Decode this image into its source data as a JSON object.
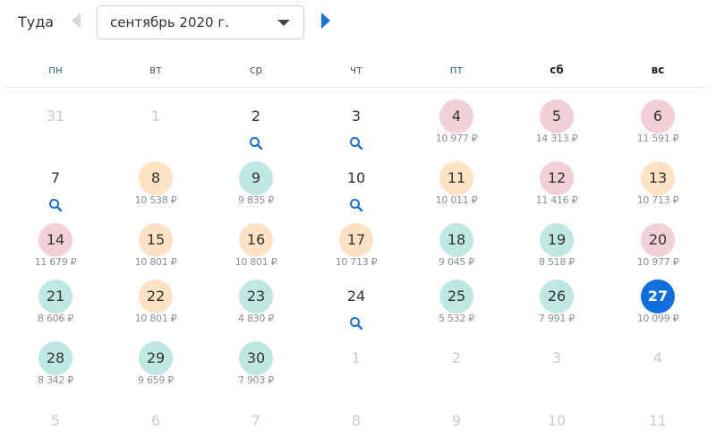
{
  "header": {
    "direction_label": "Туда",
    "month_select": "сентябрь 2020 г."
  },
  "weekdays": [
    "пн",
    "вт",
    "ср",
    "чт",
    "пт",
    "сб",
    "вс"
  ],
  "colors": {
    "high": "#f2d0d7",
    "mid": "#fde3c3",
    "low": "#bfe8e2",
    "selected": "#0f6fde"
  },
  "days": [
    {
      "d": "31",
      "s": "out"
    },
    {
      "d": "1",
      "s": "out"
    },
    {
      "d": "2",
      "s": "search"
    },
    {
      "d": "3",
      "s": "search"
    },
    {
      "d": "4",
      "s": "high",
      "p": "10 977 ₽"
    },
    {
      "d": "5",
      "s": "high",
      "p": "14 313 ₽"
    },
    {
      "d": "6",
      "s": "high",
      "p": "11 591 ₽"
    },
    {
      "d": "7",
      "s": "search"
    },
    {
      "d": "8",
      "s": "mid",
      "p": "10 538 ₽"
    },
    {
      "d": "9",
      "s": "low",
      "p": "9 835 ₽"
    },
    {
      "d": "10",
      "s": "search"
    },
    {
      "d": "11",
      "s": "mid",
      "p": "10 011 ₽"
    },
    {
      "d": "12",
      "s": "high",
      "p": "11 416 ₽"
    },
    {
      "d": "13",
      "s": "mid",
      "p": "10 713 ₽"
    },
    {
      "d": "14",
      "s": "high",
      "p": "11 679 ₽"
    },
    {
      "d": "15",
      "s": "mid",
      "p": "10 801 ₽"
    },
    {
      "d": "16",
      "s": "mid",
      "p": "10 801 ₽"
    },
    {
      "d": "17",
      "s": "mid",
      "p": "10 713 ₽"
    },
    {
      "d": "18",
      "s": "low",
      "p": "9 045 ₽"
    },
    {
      "d": "19",
      "s": "low",
      "p": "8 518 ₽"
    },
    {
      "d": "20",
      "s": "high",
      "p": "10 977 ₽"
    },
    {
      "d": "21",
      "s": "low",
      "p": "8 606 ₽"
    },
    {
      "d": "22",
      "s": "mid",
      "p": "10 801 ₽"
    },
    {
      "d": "23",
      "s": "low",
      "p": "4 830 ₽"
    },
    {
      "d": "24",
      "s": "search"
    },
    {
      "d": "25",
      "s": "low",
      "p": "5 532 ₽"
    },
    {
      "d": "26",
      "s": "low",
      "p": "7 991 ₽"
    },
    {
      "d": "27",
      "s": "selected",
      "p": "10 099 ₽"
    },
    {
      "d": "28",
      "s": "low",
      "p": "8 342 ₽"
    },
    {
      "d": "29",
      "s": "low",
      "p": "9 659 ₽"
    },
    {
      "d": "30",
      "s": "low",
      "p": "7 903 ₽"
    },
    {
      "d": "1",
      "s": "out"
    },
    {
      "d": "2",
      "s": "out"
    },
    {
      "d": "3",
      "s": "out"
    },
    {
      "d": "4",
      "s": "out"
    },
    {
      "d": "5",
      "s": "out"
    },
    {
      "d": "6",
      "s": "out"
    },
    {
      "d": "7",
      "s": "out"
    },
    {
      "d": "8",
      "s": "out"
    },
    {
      "d": "9",
      "s": "out"
    },
    {
      "d": "10",
      "s": "out"
    },
    {
      "d": "11",
      "s": "out"
    }
  ]
}
